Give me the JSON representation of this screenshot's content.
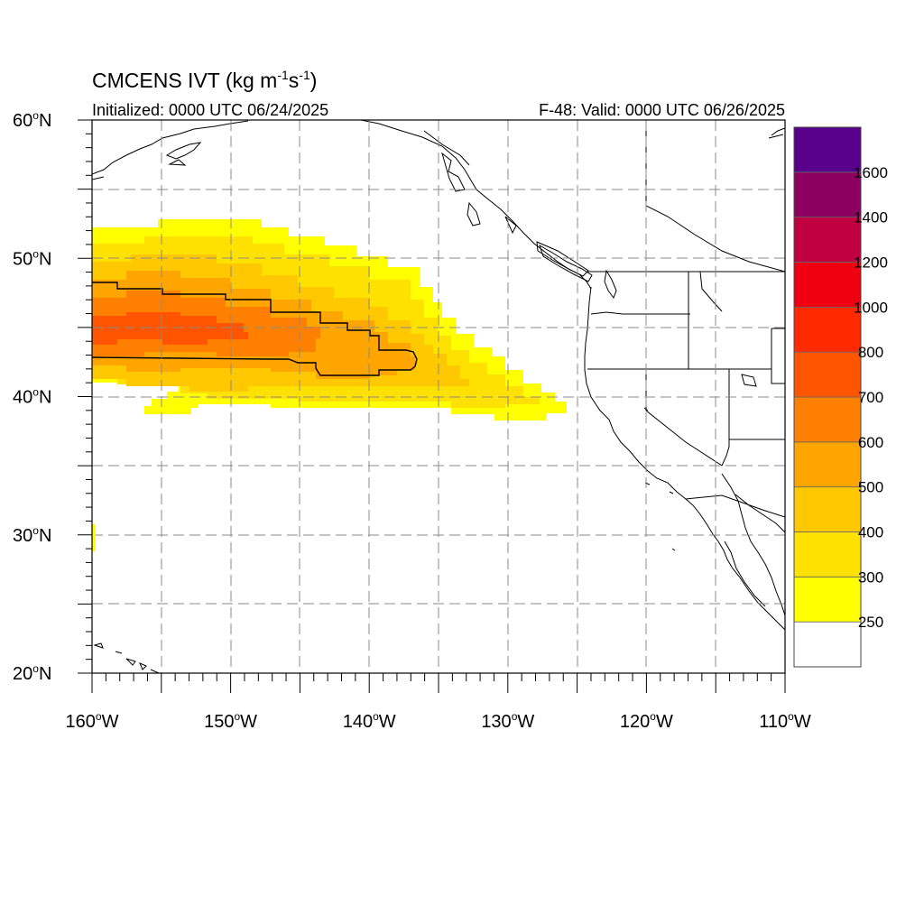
{
  "map": {
    "title_main": "CMCENS IVT (kg m",
    "title_sup1": "-1",
    "title_mid": "s",
    "title_sup2": "-1",
    "title_end": ")",
    "init_text": "Initialized: 0000 UTC 06/24/2025",
    "valid_text": "F-48: Valid: 0000 UTC 06/26/2025",
    "extent": {
      "lon_min": -160,
      "lon_max": -110,
      "lat_min": 20,
      "lat_max": 60
    },
    "lat_labels": [
      {
        "value": 60,
        "num": "60",
        "hem": "N"
      },
      {
        "value": 50,
        "num": "50",
        "hem": "N"
      },
      {
        "value": 40,
        "num": "40",
        "hem": "N"
      },
      {
        "value": 30,
        "num": "30",
        "hem": "N"
      },
      {
        "value": 20,
        "num": "20",
        "hem": "N"
      }
    ],
    "lon_labels": [
      {
        "value": -160,
        "num": "160",
        "hem": "W"
      },
      {
        "value": -150,
        "num": "150",
        "hem": "W"
      },
      {
        "value": -140,
        "num": "140",
        "hem": "W"
      },
      {
        "value": -130,
        "num": "130",
        "hem": "W"
      },
      {
        "value": -120,
        "num": "120",
        "hem": "W"
      },
      {
        "value": -110,
        "num": "110",
        "hem": "W"
      }
    ],
    "gridlines": {
      "lon_every": 5,
      "lat_every": 5,
      "style": "dashed"
    },
    "field": "Integrated Vapor Transport",
    "contour_line_level": 500
  },
  "colorbar": {
    "levels": [
      250,
      300,
      400,
      500,
      600,
      700,
      800,
      1000,
      1200,
      1400,
      1600
    ],
    "labels": [
      "250",
      "300",
      "400",
      "500",
      "600",
      "700",
      "800",
      "1000",
      "1200",
      "1400",
      "1600"
    ],
    "colors": [
      "#ffffff",
      "#ffff00",
      "#ffe100",
      "#ffc800",
      "#ffa500",
      "#ff8000",
      "#ff5500",
      "#ff2a00",
      "#ee0010",
      "#c00040",
      "#8b0060",
      "#58008c"
    ]
  }
}
